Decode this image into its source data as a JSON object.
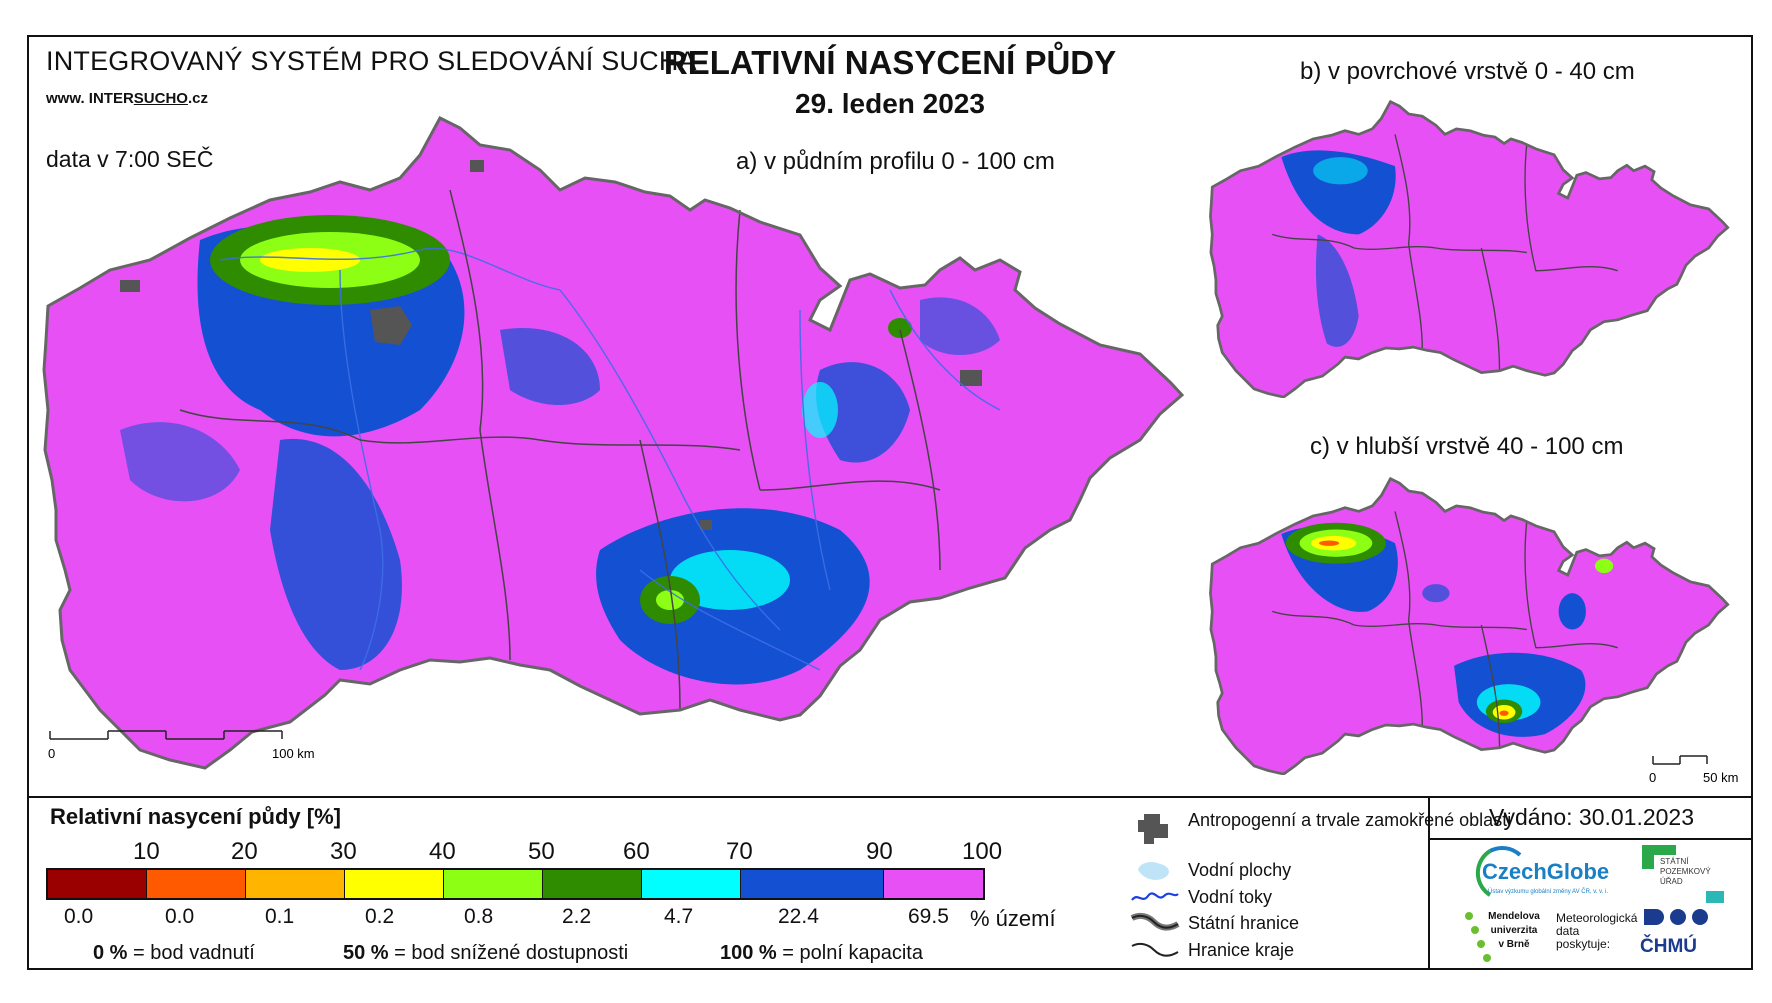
{
  "header": {
    "system_title": "INTEGROVANÝ SYSTÉM PRO SLEDOVÁNÍ SUCHA",
    "url_prefix": "www. INTER",
    "url_underlined": "SUCHO",
    "url_suffix": ".cz",
    "data_time": "data v 7:00 SEČ",
    "main_title": "RELATIVNÍ NASYCENÍ PŮDY",
    "date": "29. leden 2023"
  },
  "maps": {
    "a_label": "a) v půdním profilu 0 - 100 cm",
    "b_label": "b) v povrchové vrstvě 0 - 40 cm",
    "c_label": "c) v hlubší vrstvě 40 - 100 cm",
    "scale_main": {
      "start": "0",
      "end": "100 km"
    },
    "scale_small": {
      "start": "0",
      "end": "50 km"
    }
  },
  "legend": {
    "title": "Relativní nasycení půdy [%]",
    "thresholds": [
      "10",
      "20",
      "30",
      "40",
      "50",
      "60",
      "70",
      "90",
      "100"
    ],
    "classes": [
      {
        "color": "#9b0000",
        "percent": "0.0"
      },
      {
        "color": "#ff5a00",
        "percent": "0.0"
      },
      {
        "color": "#ffb400",
        "percent": "0.1"
      },
      {
        "color": "#ffff00",
        "percent": "0.2"
      },
      {
        "color": "#8cff14",
        "percent": "0.8"
      },
      {
        "color": "#2f8c00",
        "percent": "2.2"
      },
      {
        "color": "#00ffff",
        "percent": "4.7"
      },
      {
        "color": "#1450d2",
        "percent": "22.4"
      },
      {
        "color": "#e650f5",
        "percent": "69.5"
      }
    ],
    "percent_unit": "% území",
    "notes": [
      {
        "value": "0 %",
        "text": "= bod vadnutí"
      },
      {
        "value": "50 %",
        "text": "= bod snížené dostupnosti"
      },
      {
        "value": "100 %",
        "text": "= polní kapacita"
      }
    ]
  },
  "map_legend": {
    "anthropogenic": "Antropogenní a trvale zamokřené oblasti",
    "water_bodies": "Vodní plochy",
    "rivers": "Vodní toky",
    "state_border": "Státní hranice",
    "region_border": "Hranice kraje"
  },
  "footer": {
    "issued": "Vydáno: 30.01.2023",
    "czechglobe": "CzechGlobe",
    "czechglobe_sub": "Ústav výzkumu globální změny AV ČR, v. v. i.",
    "spu_lines": [
      "STÁTNÍ",
      "POZEMKOVÝ",
      "ÚŘAD"
    ],
    "mendel_lines": [
      "Mendelova",
      "univerzita",
      "v Brně"
    ],
    "met_lines": [
      "Meteorologická",
      "data",
      "poskytuje:"
    ],
    "chmu": "ČHMÚ"
  },
  "colors": {
    "magenta": "#e650f5",
    "blue": "#1450d2",
    "cyan": "#00ffff",
    "green": "#2f8c00",
    "lime": "#8cff14",
    "yellow": "#ffff00",
    "anthropogenic": "#555555",
    "czechglobe_blue": "#1a7fc4",
    "spu_green": "#2aa84a",
    "chmu_blue": "#1b3b8f"
  }
}
